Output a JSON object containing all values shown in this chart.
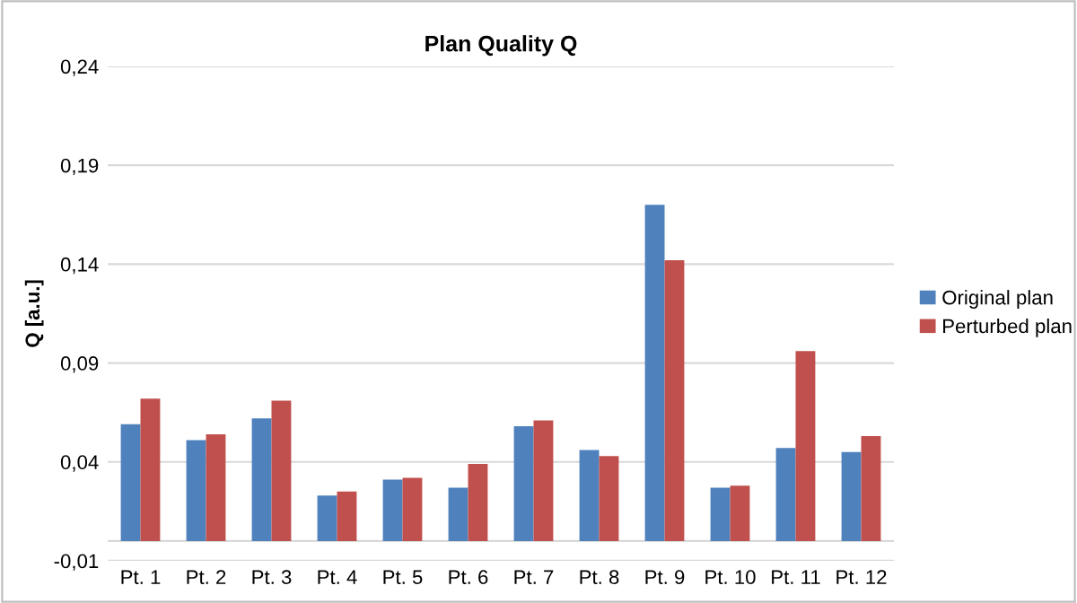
{
  "chart_data": {
    "type": "bar",
    "title": "Plan Quality Q",
    "ylabel": "Q [a.u.]",
    "categories": [
      "Pt. 1",
      "Pt. 2",
      "Pt. 3",
      "Pt. 4",
      "Pt. 5",
      "Pt. 6",
      "Pt. 7",
      "Pt. 8",
      "Pt. 9",
      "Pt. 10",
      "Pt. 11",
      "Pt. 12"
    ],
    "series": [
      {
        "name": "Original plan",
        "color": "#4f81bd",
        "values": [
          0.059,
          0.051,
          0.062,
          0.023,
          0.031,
          0.027,
          0.058,
          0.046,
          0.17,
          0.027,
          0.047,
          0.045
        ]
      },
      {
        "name": "Perturbed plan",
        "color": "#c0504d",
        "values": [
          0.072,
          0.054,
          0.071,
          0.025,
          0.032,
          0.039,
          0.061,
          0.043,
          0.142,
          0.028,
          0.096,
          0.053
        ]
      }
    ],
    "ylim": [
      -0.01,
      0.24
    ],
    "yticks": [
      {
        "value": -0.01,
        "label": "-0,01"
      },
      {
        "value": 0.04,
        "label": "0,04"
      },
      {
        "value": 0.09,
        "label": "0,09"
      },
      {
        "value": 0.14,
        "label": "0,14"
      },
      {
        "value": 0.19,
        "label": "0,19"
      },
      {
        "value": 0.24,
        "label": "0,24"
      }
    ],
    "grid": "y",
    "legend": "right"
  }
}
